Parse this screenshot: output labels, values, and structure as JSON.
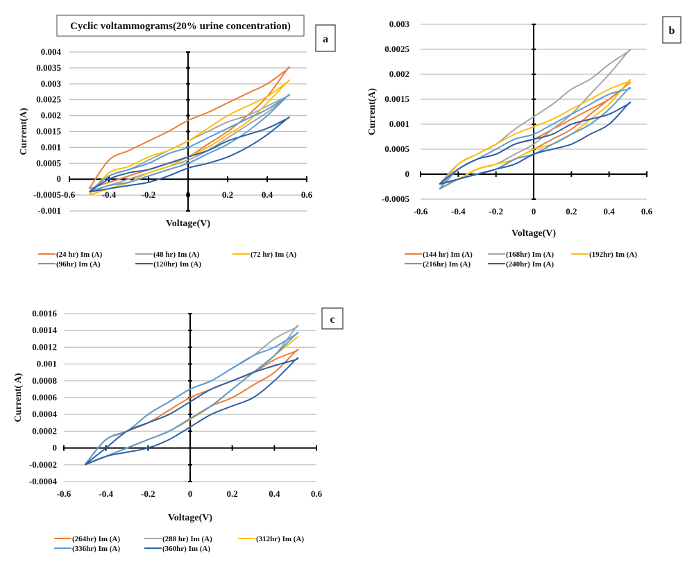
{
  "chart_data": [
    {
      "id": "a",
      "type": "line",
      "panel_label": "a",
      "title": "Cyclic voltammograms(20% urine concentration)",
      "xlabel": "Voltage(V)",
      "ylabel": "Current(A)",
      "xlim": [
        -0.6,
        0.6
      ],
      "ylim": [
        -0.001,
        0.004
      ],
      "xticks": [
        "-0.6",
        "-0.4",
        "-0.2",
        "0",
        "0.2",
        "0.4",
        "0.6"
      ],
      "xtick_values": [
        -0.6,
        -0.4,
        -0.2,
        0,
        0.2,
        0.4,
        0.6
      ],
      "yticks": [
        "-0.001",
        "-0.0005",
        "0",
        "0.0005",
        "0.001",
        "0.0015",
        "0.002",
        "0.0025",
        "0.003",
        "0.0035",
        "0.004"
      ],
      "ytick_values": [
        -0.001,
        -0.0005,
        0,
        0.0005,
        0.001,
        0.0015,
        0.002,
        0.0025,
        0.003,
        0.0035,
        0.004
      ],
      "grid": true,
      "legend_position": "bottom",
      "x": [
        -0.5,
        -0.4,
        -0.3,
        -0.2,
        -0.1,
        0,
        0.1,
        0.2,
        0.3,
        0.4,
        0.5
      ],
      "series": [
        {
          "name": "(24 hr) Im (A)",
          "color": "#ED7D31",
          "upper": [
            -0.0003,
            0.0006,
            0.0009,
            0.0012,
            0.0015,
            0.00185,
            0.0021,
            0.0024,
            0.0027,
            0.003,
            0.00345
          ],
          "lower": [
            -0.0003,
            -0.0001,
            0.0001,
            0.0003,
            0.0005,
            0.0007,
            0.0011,
            0.0015,
            0.002,
            0.0026,
            0.00345
          ]
        },
        {
          "name": "(48 hr) Im (A)",
          "color": "#A5A5A5",
          "upper": [
            -0.0004,
            0.0001,
            0.0003,
            0.0006,
            0.0009,
            0.0012,
            0.0015,
            0.0018,
            0.002,
            0.0023,
            0.0026
          ],
          "lower": [
            -0.0004,
            -0.0002,
            0.0,
            0.0002,
            0.0004,
            0.0006,
            0.0009,
            0.0013,
            0.0017,
            0.0021,
            0.0026
          ]
        },
        {
          "name": "(72 hr) Im (A)",
          "color": "#FFC000",
          "upper": [
            -0.0005,
            0.0002,
            0.0004,
            0.0007,
            0.0009,
            0.0012,
            0.0016,
            0.002,
            0.0023,
            0.0026,
            0.00305
          ],
          "lower": [
            -0.0005,
            -0.0003,
            -0.0001,
            0.0002,
            0.0004,
            0.0007,
            0.001,
            0.0014,
            0.0018,
            0.0024,
            0.00305
          ]
        },
        {
          "name": "(96hr) Im (A)",
          "color": "#5B9BD5",
          "upper": [
            -0.0004,
            0.0001,
            0.0003,
            0.0005,
            0.0008,
            0.001,
            0.0013,
            0.0016,
            0.0019,
            0.0022,
            0.0026
          ],
          "lower": [
            -0.0004,
            -0.0002,
            -0.0001,
            0.0001,
            0.0003,
            0.0005,
            0.0008,
            0.0011,
            0.0015,
            0.002,
            0.0026
          ]
        },
        {
          "name": "(120hr) Im (A)",
          "color": "#2E5FA8",
          "upper": [
            -0.0004,
            0.0,
            0.0002,
            0.0003,
            0.0005,
            0.0007,
            0.0009,
            0.0012,
            0.0014,
            0.0016,
            0.0019
          ],
          "lower": [
            -0.0004,
            -0.0003,
            -0.0002,
            -0.0001,
            0.0001,
            0.00035,
            0.0005,
            0.0007,
            0.001,
            0.0014,
            0.0019
          ]
        }
      ]
    },
    {
      "id": "b",
      "type": "line",
      "panel_label": "b",
      "title": "",
      "xlabel": "Voltage(V)",
      "ylabel": "Current(A)",
      "xlim": [
        -0.6,
        0.6
      ],
      "ylim": [
        -0.0005,
        0.003
      ],
      "xticks": [
        "-0.6",
        "-0.4",
        "-0.2",
        "0",
        "0.2",
        "0.4",
        "0.6"
      ],
      "xtick_values": [
        -0.6,
        -0.4,
        -0.2,
        0,
        0.2,
        0.4,
        0.6
      ],
      "yticks": [
        "-0.0005",
        "0",
        "0.0005",
        "0.001",
        "0.0015",
        "0.002",
        "0.0025",
        "0.003"
      ],
      "ytick_values": [
        -0.0005,
        0,
        0.0005,
        0.001,
        0.0015,
        0.002,
        0.0025,
        0.003
      ],
      "grid": true,
      "legend_position": "bottom",
      "x": [
        -0.5,
        -0.4,
        -0.3,
        -0.2,
        -0.1,
        0,
        0.1,
        0.2,
        0.3,
        0.4,
        0.5
      ],
      "series": [
        {
          "name": "(144 hr) Im (A)",
          "color": "#ED7D31",
          "upper": [
            -0.0002,
            0.0001,
            0.0003,
            0.0004,
            0.0006,
            0.0007,
            0.0009,
            0.0011,
            0.0013,
            0.0015,
            0.0018
          ],
          "lower": [
            -0.0002,
            -0.0001,
            0.0,
            0.0001,
            0.0003,
            0.0005,
            0.0007,
            0.0009,
            0.0012,
            0.0015,
            0.0018
          ]
        },
        {
          "name": "(168hr) Im (A)",
          "color": "#A5A5A5",
          "upper": [
            -0.0002,
            0.0002,
            0.0004,
            0.0006,
            0.0009,
            0.00115,
            0.0014,
            0.0017,
            0.0019,
            0.0022,
            0.00245
          ],
          "lower": [
            -0.0002,
            -0.0001,
            0.0001,
            0.0002,
            0.0004,
            0.0006,
            0.0009,
            0.0012,
            0.0016,
            0.002,
            0.00245
          ]
        },
        {
          "name": "(192hr) Im (A)",
          "color": "#FFC000",
          "upper": [
            -0.0003,
            0.0002,
            0.0004,
            0.0006,
            0.0008,
            0.00095,
            0.0011,
            0.0013,
            0.0015,
            0.0017,
            0.00185
          ],
          "lower": [
            -0.0003,
            -0.0001,
            0.0001,
            0.0002,
            0.0003,
            0.0005,
            0.0006,
            0.0008,
            0.0011,
            0.0014,
            0.00185
          ]
        },
        {
          "name": "(216hr) Im (A)",
          "color": "#5B9BD5",
          "upper": [
            -0.0003,
            0.0001,
            0.0003,
            0.0005,
            0.0007,
            0.0008,
            0.001,
            0.0012,
            0.0014,
            0.0016,
            0.0017
          ],
          "lower": [
            -0.0003,
            -0.0001,
            0.0,
            0.0001,
            0.0003,
            0.0004,
            0.0006,
            0.0008,
            0.001,
            0.0013,
            0.0017
          ]
        },
        {
          "name": "(240hr) Im (A)",
          "color": "#2E5FA8",
          "upper": [
            -0.0002,
            0.0001,
            0.0003,
            0.0004,
            0.0006,
            0.0007,
            0.0008,
            0.001,
            0.0011,
            0.0012,
            0.0014
          ],
          "lower": [
            -0.0002,
            -0.0001,
            0.0,
            0.0001,
            0.0002,
            0.0004,
            0.0005,
            0.0006,
            0.0008,
            0.001,
            0.0014
          ]
        }
      ]
    },
    {
      "id": "c",
      "type": "line",
      "panel_label": "c",
      "title": "",
      "xlabel": "Voltage(V)",
      "ylabel": "Current( A)",
      "xlim": [
        -0.6,
        0.6
      ],
      "ylim": [
        -0.0004,
        0.0016
      ],
      "xticks": [
        "-0.6",
        "-0.4",
        "-0.2",
        "0",
        "0.2",
        "0.4",
        "0.6"
      ],
      "xtick_values": [
        -0.6,
        -0.4,
        -0.2,
        0,
        0.2,
        0.4,
        0.6
      ],
      "yticks": [
        "-0.0004",
        "-0.0002",
        "0",
        "0.0002",
        "0.0004",
        "0.0006",
        "0.0008",
        "0.001",
        "0.0012",
        "0.0014",
        "0.0016"
      ],
      "ytick_values": [
        -0.0004,
        -0.0002,
        0,
        0.0002,
        0.0004,
        0.0006,
        0.0008,
        0.001,
        0.0012,
        0.0014,
        0.0016
      ],
      "grid": true,
      "legend_position": "bottom",
      "x": [
        -0.5,
        -0.4,
        -0.3,
        -0.2,
        -0.1,
        0,
        0.1,
        0.2,
        0.3,
        0.4,
        0.5
      ],
      "series": [
        {
          "name": "(264hr) Im (A)",
          "color": "#ED7D31",
          "upper": [
            -0.0002,
            0.0001,
            0.0002,
            0.0003,
            0.00045,
            0.0006,
            0.0007,
            0.0008,
            0.0009,
            0.00105,
            0.00115
          ],
          "lower": [
            -0.0002,
            -0.0001,
            0.0,
            0.0001,
            0.0002,
            0.00035,
            0.0005,
            0.0006,
            0.00075,
            0.0009,
            0.00115
          ]
        },
        {
          "name": "(288 hr) Im (A)",
          "color": "#A5A5A5",
          "upper": [
            -0.0002,
            0.0001,
            0.0002,
            0.0004,
            0.00055,
            0.0007,
            0.0008,
            0.00095,
            0.0011,
            0.0013,
            0.00143
          ],
          "lower": [
            -0.0002,
            -0.0001,
            0.0,
            0.0001,
            0.0002,
            0.00035,
            0.0005,
            0.0007,
            0.0009,
            0.0011,
            0.00143
          ]
        },
        {
          "name": "(312hr) Im (A)",
          "color": "#FFC000",
          "upper": [
            -0.0002,
            -0.0001,
            0.0,
            0.0001,
            0.0002,
            0.00035,
            0.0005,
            0.0007,
            0.0009,
            0.0011,
            0.0013
          ],
          "lower": [
            -0.0002,
            -0.0001,
            0.0,
            0.0001,
            0.0002,
            0.00034,
            0.0005,
            0.0007,
            0.0009,
            0.0011,
            0.0013
          ]
        },
        {
          "name": "(336hr) Im (A)",
          "color": "#5B9BD5",
          "upper": [
            -0.0002,
            0.0001,
            0.0002,
            0.0004,
            0.00055,
            0.0007,
            0.0008,
            0.00095,
            0.0011,
            0.0012,
            0.00135
          ],
          "lower": [
            -0.0002,
            -0.0001,
            0.0,
            0.0001,
            0.0002,
            0.00035,
            0.0005,
            0.0007,
            0.0009,
            0.0011,
            0.00135
          ]
        },
        {
          "name": "(360hr) Im (A)",
          "color": "#2E5FA8",
          "upper": [
            -0.0002,
            0.0,
            0.0002,
            0.0003,
            0.0004,
            0.00055,
            0.0007,
            0.0008,
            0.0009,
            0.00098,
            0.00105
          ],
          "lower": [
            -0.0002,
            -0.0001,
            -5e-05,
            0.0,
            0.0001,
            0.00025,
            0.0004,
            0.0005,
            0.0006,
            0.0008,
            0.00105
          ]
        }
      ]
    }
  ]
}
